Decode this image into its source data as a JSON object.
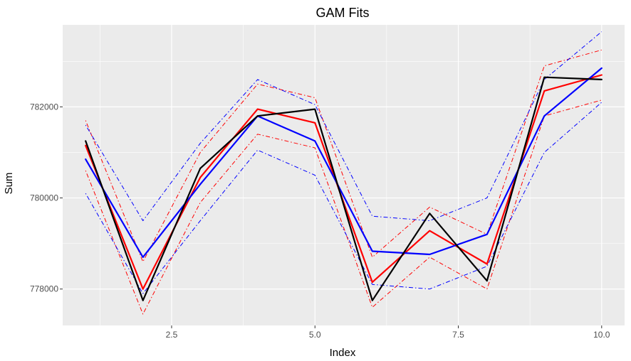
{
  "chart_data": {
    "type": "line",
    "title": "GAM Fits",
    "xlabel": "Index",
    "ylabel": "Sum",
    "xlim": [
      0.6,
      10.4
    ],
    "ylim": [
      777200,
      783800
    ],
    "x_ticks": [
      2.5,
      5.0,
      7.5,
      10.0
    ],
    "x_tick_labels": [
      "2.5",
      "5.0",
      "7.5",
      "10.0"
    ],
    "y_ticks": [
      778000,
      780000,
      782000
    ],
    "y_tick_labels": [
      "778000",
      "780000",
      "782000"
    ],
    "background": "#ebebeb",
    "grid": true,
    "x": [
      1,
      2,
      3,
      4,
      5,
      6,
      7,
      8,
      9,
      10
    ],
    "series": [
      {
        "color": "#ff0000",
        "style": "dotdash",
        "width": 1,
        "values": [
          781700,
          778600,
          781000,
          782500,
          782200,
          778700,
          779800,
          779200,
          782900,
          783250
        ]
      },
      {
        "color": "#ff0000",
        "style": "dotdash",
        "width": 1,
        "values": [
          780600,
          777450,
          779900,
          781400,
          781100,
          777600,
          778700,
          778000,
          781800,
          782150
        ]
      },
      {
        "color": "#0000ff",
        "style": "dotdash",
        "width": 1,
        "values": [
          781600,
          779500,
          781200,
          782600,
          782050,
          779600,
          779500,
          780000,
          782600,
          783650
        ]
      },
      {
        "color": "#0000ff",
        "style": "dotdash",
        "width": 1,
        "values": [
          780100,
          777900,
          779500,
          781050,
          780500,
          778100,
          778000,
          778500,
          781000,
          782100
        ]
      },
      {
        "color": "#ff0000",
        "style": "solid",
        "width": 2.2,
        "values": [
          781150,
          778000,
          780450,
          781950,
          781650,
          778150,
          779280,
          778550,
          782350,
          782700
        ]
      },
      {
        "color": "#0000ff",
        "style": "solid",
        "width": 2.2,
        "values": [
          780850,
          778700,
          780300,
          781800,
          781250,
          778830,
          778760,
          779200,
          781800,
          782850
        ]
      },
      {
        "color": "#000000",
        "style": "solid",
        "width": 2.2,
        "values": [
          781250,
          777750,
          780650,
          781800,
          781950,
          777750,
          779660,
          778180,
          782650,
          782600
        ]
      }
    ]
  }
}
